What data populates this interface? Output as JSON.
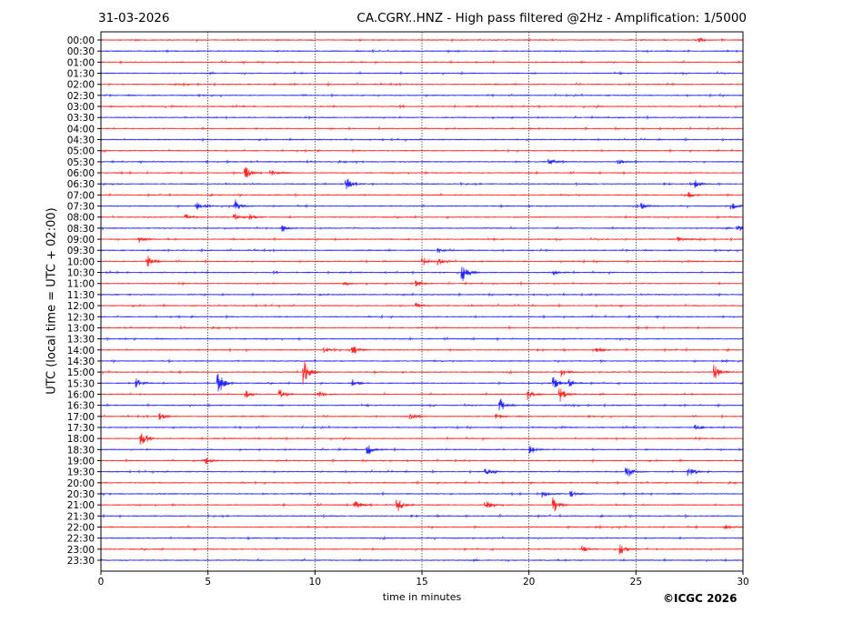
{
  "header": {
    "date": "31-03-2026",
    "title": "CA.CGRY..HNZ - High pass filtered @2Hz - Amplification: 1/5000"
  },
  "footer": {
    "copyright": "©ICGC 2026"
  },
  "chart_data": {
    "type": "line",
    "title": "CA.CGRY..HNZ - High pass filtered @2Hz - Amplification: 1/5000",
    "xlabel": "time in minutes",
    "ylabel": "UTC (local time = UTC + 02:00)",
    "xlim": [
      0,
      30
    ],
    "xticks": [
      "0",
      "5",
      "10",
      "15",
      "20",
      "25",
      "30"
    ],
    "grid": "vertical dotted at each 5 minutes",
    "colors": [
      "#ff0000",
      "#0000ff"
    ],
    "rows": [
      "00:00",
      "00:30",
      "01:00",
      "01:30",
      "02:00",
      "02:30",
      "03:00",
      "03:30",
      "04:00",
      "04:30",
      "05:00",
      "05:30",
      "06:00",
      "06:30",
      "07:00",
      "07:30",
      "08:00",
      "08:30",
      "09:00",
      "09:30",
      "10:00",
      "10:30",
      "11:00",
      "11:30",
      "12:00",
      "12:30",
      "13:00",
      "13:30",
      "14:00",
      "14:30",
      "15:00",
      "15:30",
      "16:00",
      "16:30",
      "17:00",
      "17:30",
      "18:00",
      "18:30",
      "19:00",
      "19:30",
      "20:00",
      "20:30",
      "21:00",
      "21:30",
      "22:00",
      "22:30",
      "23:00",
      "23:30"
    ],
    "events": [
      [
        "00:00",
        28,
        3
      ],
      [
        "05:30",
        21,
        3
      ],
      [
        "05:30",
        24.2,
        3
      ],
      [
        "06:00",
        6.8,
        6
      ],
      [
        "06:00",
        8,
        3
      ],
      [
        "06:30",
        11.5,
        7
      ],
      [
        "06:30",
        27.8,
        4
      ],
      [
        "07:00",
        27.5,
        3
      ],
      [
        "07:30",
        4.5,
        4
      ],
      [
        "07:30",
        6.3,
        6
      ],
      [
        "07:30",
        25.3,
        4
      ],
      [
        "07:30",
        29.5,
        4
      ],
      [
        "08:00",
        4,
        3
      ],
      [
        "08:00",
        6.3,
        4
      ],
      [
        "08:00",
        7,
        3
      ],
      [
        "08:30",
        8.5,
        4
      ],
      [
        "08:30",
        29.8,
        4
      ],
      [
        "09:00",
        1.8,
        4
      ],
      [
        "09:00",
        27,
        3
      ],
      [
        "09:30",
        15.8,
        3
      ],
      [
        "10:00",
        2.2,
        9
      ],
      [
        "10:00",
        15.1,
        4
      ],
      [
        "10:00",
        15.8,
        4
      ],
      [
        "10:30",
        16.9,
        10
      ],
      [
        "10:30",
        21.2,
        3
      ],
      [
        "11:00",
        11.4,
        3
      ],
      [
        "11:00",
        14.8,
        3
      ],
      [
        "12:00",
        14.8,
        3
      ],
      [
        "14:00",
        10.5,
        3
      ],
      [
        "14:00",
        11.8,
        5
      ],
      [
        "14:00",
        23.2,
        4
      ],
      [
        "15:00",
        9.5,
        14
      ],
      [
        "15:00",
        21.6,
        4
      ],
      [
        "15:00",
        28.7,
        8
      ],
      [
        "15:30",
        1.7,
        5
      ],
      [
        "15:30",
        5.5,
        14
      ],
      [
        "15:30",
        11.8,
        4
      ],
      [
        "15:30",
        21.2,
        7
      ],
      [
        "15:30",
        21.9,
        5
      ],
      [
        "16:00",
        6.8,
        4
      ],
      [
        "16:00",
        8.4,
        5
      ],
      [
        "16:00",
        10.2,
        4
      ],
      [
        "16:00",
        20,
        6
      ],
      [
        "16:00",
        21.5,
        8
      ],
      [
        "16:30",
        18.7,
        7
      ],
      [
        "17:00",
        2.8,
        4
      ],
      [
        "17:00",
        14.5,
        3
      ],
      [
        "17:00",
        18.5,
        3
      ],
      [
        "17:30",
        27.8,
        3
      ],
      [
        "18:00",
        1.9,
        8
      ],
      [
        "18:30",
        12.5,
        6
      ],
      [
        "18:30",
        20.1,
        5
      ],
      [
        "19:00",
        4.9,
        4
      ],
      [
        "19:30",
        18,
        5
      ],
      [
        "19:30",
        24.6,
        8
      ],
      [
        "19:30",
        27.5,
        5
      ],
      [
        "20:30",
        20.7,
        4
      ],
      [
        "20:30",
        22,
        3
      ],
      [
        "21:00",
        11.9,
        6
      ],
      [
        "21:00",
        13.9,
        7
      ],
      [
        "21:00",
        18,
        6
      ],
      [
        "21:00",
        21.2,
        8
      ],
      [
        "22:00",
        29.2,
        3
      ],
      [
        "23:00",
        22.5,
        4
      ],
      [
        "23:00",
        24.3,
        6
      ]
    ]
  }
}
